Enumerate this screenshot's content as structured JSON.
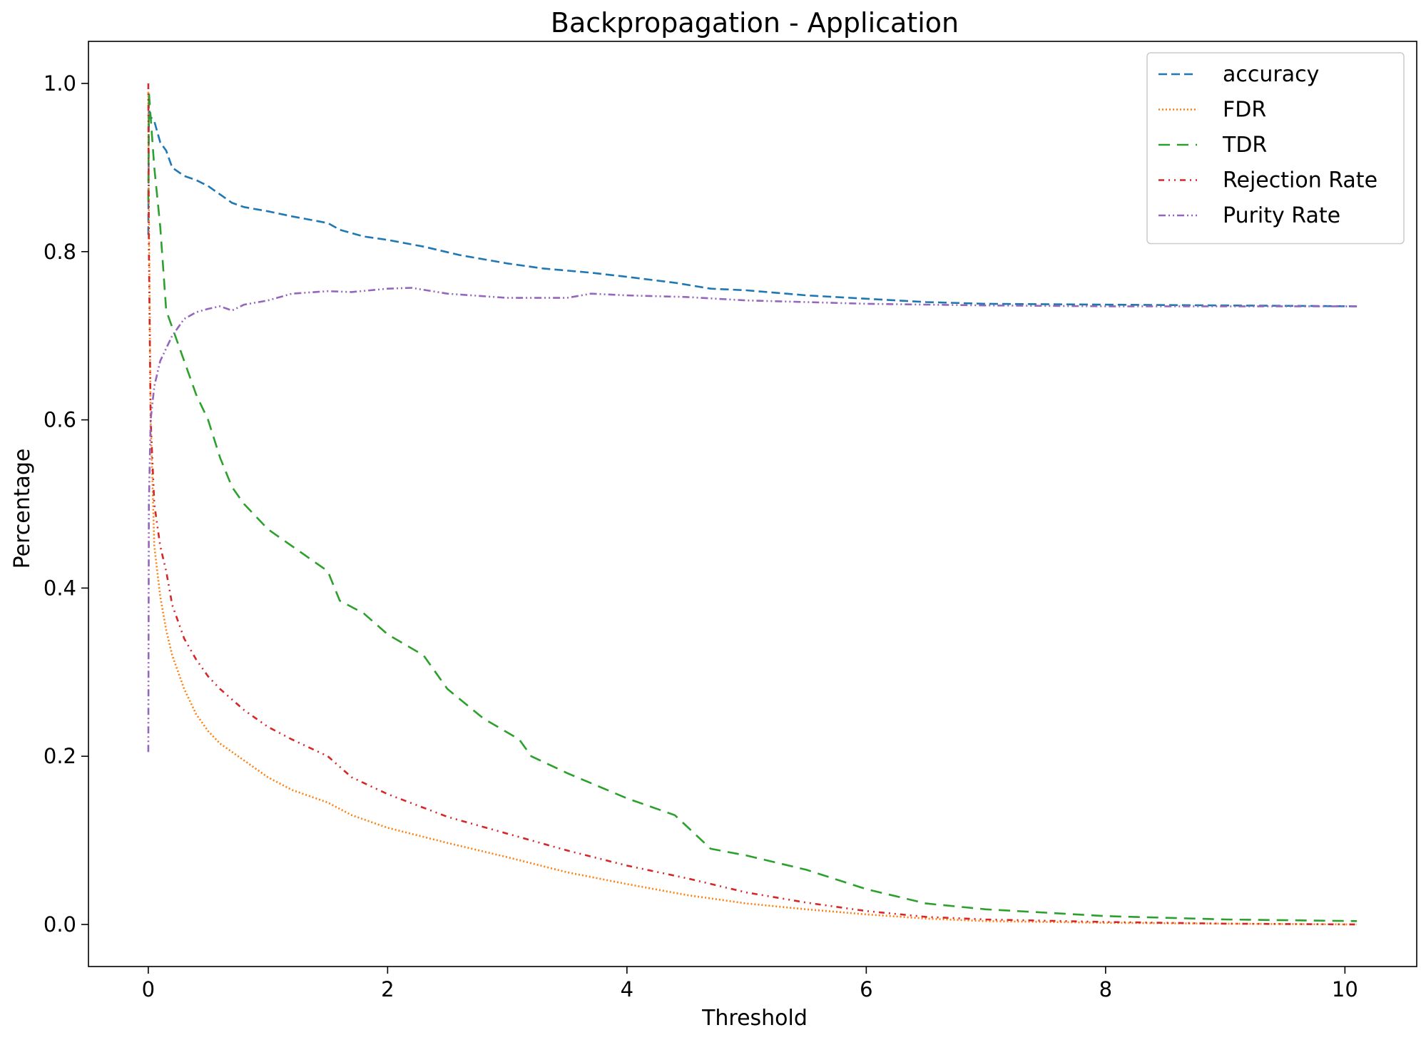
{
  "chart_data": {
    "type": "line",
    "title": "Backpropagation - Application",
    "xlabel": "Threshold",
    "ylabel": "Percentage",
    "xlim": [
      -0.5,
      10.6
    ],
    "ylim": [
      -0.05,
      1.05
    ],
    "xticks": [
      0,
      2,
      4,
      6,
      8,
      10
    ],
    "xtick_labels": [
      "0",
      "2",
      "4",
      "6",
      "8",
      "10"
    ],
    "yticks": [
      0.0,
      0.2,
      0.4,
      0.6,
      0.8,
      1.0
    ],
    "ytick_labels": [
      "0.0",
      "0.2",
      "0.4",
      "0.6",
      "0.8",
      "1.0"
    ],
    "grid": false,
    "legend_position": "top-right",
    "series": [
      {
        "name": "accuracy",
        "color": "#1f77b4",
        "dash": "12,6",
        "points": [
          [
            0,
            0.82
          ],
          [
            0.005,
            0.97
          ],
          [
            0.02,
            0.96
          ],
          [
            0.05,
            0.955
          ],
          [
            0.1,
            0.93
          ],
          [
            0.15,
            0.92
          ],
          [
            0.2,
            0.9
          ],
          [
            0.3,
            0.89
          ],
          [
            0.4,
            0.885
          ],
          [
            0.5,
            0.878
          ],
          [
            0.6,
            0.868
          ],
          [
            0.7,
            0.858
          ],
          [
            0.8,
            0.853
          ],
          [
            1.0,
            0.848
          ],
          [
            1.2,
            0.842
          ],
          [
            1.5,
            0.834
          ],
          [
            1.6,
            0.826
          ],
          [
            1.8,
            0.818
          ],
          [
            2.0,
            0.814
          ],
          [
            2.3,
            0.806
          ],
          [
            2.6,
            0.796
          ],
          [
            3.0,
            0.786
          ],
          [
            3.3,
            0.78
          ],
          [
            3.7,
            0.775
          ],
          [
            4.0,
            0.77
          ],
          [
            4.4,
            0.763
          ],
          [
            4.7,
            0.756
          ],
          [
            5.0,
            0.754
          ],
          [
            5.5,
            0.748
          ],
          [
            6.0,
            0.744
          ],
          [
            6.5,
            0.74
          ],
          [
            7.0,
            0.738
          ],
          [
            8.0,
            0.737
          ],
          [
            9.0,
            0.736
          ],
          [
            10.1,
            0.735
          ]
        ]
      },
      {
        "name": "FDR",
        "color": "#ff7f0e",
        "dash": "2,3",
        "points": [
          [
            0,
            0.99
          ],
          [
            0.005,
            0.85
          ],
          [
            0.02,
            0.6
          ],
          [
            0.05,
            0.45
          ],
          [
            0.1,
            0.39
          ],
          [
            0.15,
            0.35
          ],
          [
            0.2,
            0.32
          ],
          [
            0.3,
            0.28
          ],
          [
            0.4,
            0.25
          ],
          [
            0.5,
            0.23
          ],
          [
            0.6,
            0.215
          ],
          [
            0.8,
            0.195
          ],
          [
            1.0,
            0.175
          ],
          [
            1.2,
            0.16
          ],
          [
            1.5,
            0.145
          ],
          [
            1.7,
            0.13
          ],
          [
            2.0,
            0.115
          ],
          [
            2.5,
            0.097
          ],
          [
            3.0,
            0.08
          ],
          [
            3.5,
            0.062
          ],
          [
            4.0,
            0.048
          ],
          [
            4.5,
            0.035
          ],
          [
            5.0,
            0.025
          ],
          [
            5.5,
            0.018
          ],
          [
            6.0,
            0.012
          ],
          [
            6.5,
            0.007
          ],
          [
            7.0,
            0.004
          ],
          [
            8.0,
            0.002
          ],
          [
            9.0,
            0.001
          ],
          [
            10.1,
            0.0
          ]
        ]
      },
      {
        "name": "TDR",
        "color": "#2ca02c",
        "dash": "16,10",
        "points": [
          [
            0,
            0.86
          ],
          [
            0.005,
            0.99
          ],
          [
            0.02,
            0.96
          ],
          [
            0.05,
            0.9
          ],
          [
            0.1,
            0.83
          ],
          [
            0.15,
            0.73
          ],
          [
            0.2,
            0.71
          ],
          [
            0.3,
            0.67
          ],
          [
            0.4,
            0.63
          ],
          [
            0.5,
            0.6
          ],
          [
            0.6,
            0.555
          ],
          [
            0.7,
            0.52
          ],
          [
            0.8,
            0.5
          ],
          [
            1.0,
            0.47
          ],
          [
            1.3,
            0.44
          ],
          [
            1.5,
            0.42
          ],
          [
            1.6,
            0.385
          ],
          [
            1.8,
            0.37
          ],
          [
            2.0,
            0.345
          ],
          [
            2.3,
            0.32
          ],
          [
            2.5,
            0.28
          ],
          [
            2.8,
            0.245
          ],
          [
            3.1,
            0.22
          ],
          [
            3.2,
            0.2
          ],
          [
            3.5,
            0.18
          ],
          [
            4.0,
            0.15
          ],
          [
            4.4,
            0.13
          ],
          [
            4.7,
            0.09
          ],
          [
            5.0,
            0.082
          ],
          [
            5.5,
            0.065
          ],
          [
            6.0,
            0.042
          ],
          [
            6.5,
            0.025
          ],
          [
            7.0,
            0.018
          ],
          [
            7.5,
            0.014
          ],
          [
            8.0,
            0.01
          ],
          [
            9.0,
            0.006
          ],
          [
            10.1,
            0.004
          ]
        ]
      },
      {
        "name": "Rejection Rate",
        "color": "#d62728",
        "dash": "8,6,2,6,2,6",
        "points": [
          [
            0,
            1.0
          ],
          [
            0.005,
            0.8
          ],
          [
            0.02,
            0.6
          ],
          [
            0.05,
            0.5
          ],
          [
            0.1,
            0.45
          ],
          [
            0.15,
            0.42
          ],
          [
            0.2,
            0.38
          ],
          [
            0.3,
            0.34
          ],
          [
            0.4,
            0.315
          ],
          [
            0.5,
            0.295
          ],
          [
            0.6,
            0.28
          ],
          [
            0.8,
            0.255
          ],
          [
            1.0,
            0.235
          ],
          [
            1.2,
            0.22
          ],
          [
            1.5,
            0.2
          ],
          [
            1.7,
            0.175
          ],
          [
            2.0,
            0.155
          ],
          [
            2.5,
            0.128
          ],
          [
            3.0,
            0.108
          ],
          [
            3.5,
            0.088
          ],
          [
            4.0,
            0.07
          ],
          [
            4.5,
            0.055
          ],
          [
            5.0,
            0.038
          ],
          [
            5.5,
            0.026
          ],
          [
            6.0,
            0.016
          ],
          [
            6.5,
            0.009
          ],
          [
            7.0,
            0.006
          ],
          [
            8.0,
            0.003
          ],
          [
            9.0,
            0.001
          ],
          [
            10.1,
            0.0
          ]
        ]
      },
      {
        "name": "Purity Rate",
        "color": "#9467bd",
        "dash": "10,4,2,4,2,4",
        "points": [
          [
            0,
            0.205
          ],
          [
            0.005,
            0.5
          ],
          [
            0.02,
            0.6
          ],
          [
            0.05,
            0.64
          ],
          [
            0.1,
            0.67
          ],
          [
            0.15,
            0.685
          ],
          [
            0.2,
            0.7
          ],
          [
            0.3,
            0.72
          ],
          [
            0.4,
            0.728
          ],
          [
            0.5,
            0.732
          ],
          [
            0.6,
            0.735
          ],
          [
            0.7,
            0.73
          ],
          [
            0.8,
            0.737
          ],
          [
            1.0,
            0.742
          ],
          [
            1.2,
            0.75
          ],
          [
            1.5,
            0.753
          ],
          [
            1.7,
            0.752
          ],
          [
            2.0,
            0.756
          ],
          [
            2.2,
            0.757
          ],
          [
            2.5,
            0.75
          ],
          [
            3.0,
            0.745
          ],
          [
            3.5,
            0.745
          ],
          [
            3.7,
            0.75
          ],
          [
            4.0,
            0.748
          ],
          [
            4.5,
            0.746
          ],
          [
            5.0,
            0.742
          ],
          [
            5.5,
            0.74
          ],
          [
            6.0,
            0.738
          ],
          [
            7.0,
            0.736
          ],
          [
            8.0,
            0.735
          ],
          [
            9.0,
            0.735
          ],
          [
            10.1,
            0.735
          ]
        ]
      }
    ]
  }
}
